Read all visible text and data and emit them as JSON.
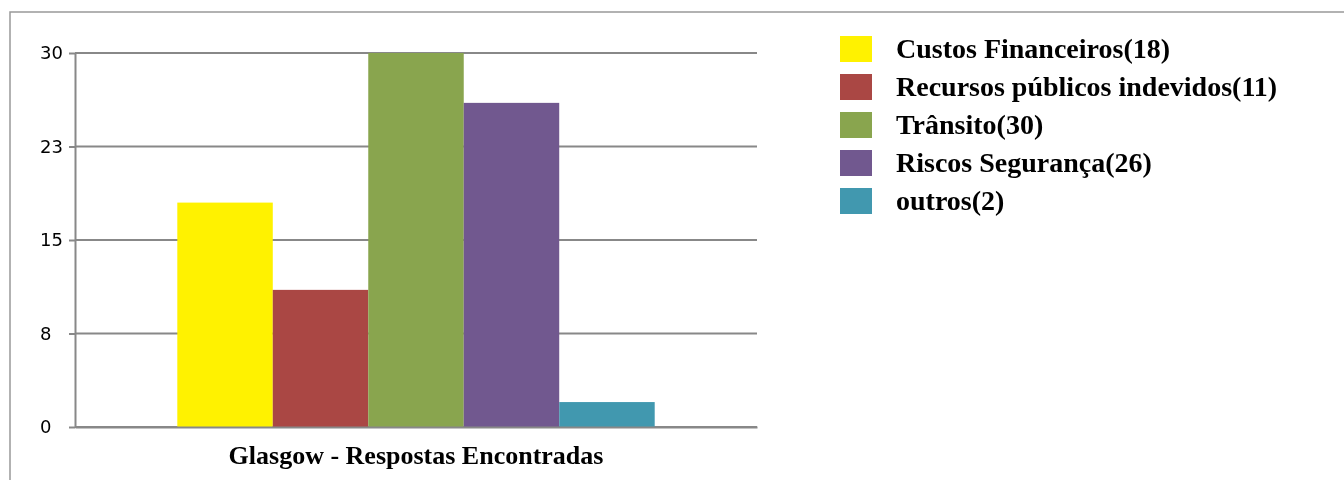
{
  "chart_data": {
    "type": "bar",
    "categories": [
      "Glasgow - Respostas Encontradas"
    ],
    "series": [
      {
        "name": "Custos Financeiros(18)",
        "color": "#fff200",
        "values": [
          18
        ]
      },
      {
        "name": "Recursos públicos indevidos(11)",
        "color": "#aa4744",
        "values": [
          11
        ]
      },
      {
        "name": "Trânsito(30)",
        "color": "#89a54e",
        "values": [
          30
        ]
      },
      {
        "name": "Riscos Segurança(26)",
        "color": "#71588f",
        "values": [
          26
        ]
      },
      {
        "name": "outros(2)",
        "color": "#4198af",
        "values": [
          2
        ]
      }
    ],
    "ylim": [
      0,
      30
    ],
    "yticks": [
      0,
      {
        "value": 7.5,
        "label": "8"
      },
      15,
      {
        "value": 22.5,
        "label": "23"
      },
      30
    ],
    "grid": "y",
    "legend": "top right"
  }
}
